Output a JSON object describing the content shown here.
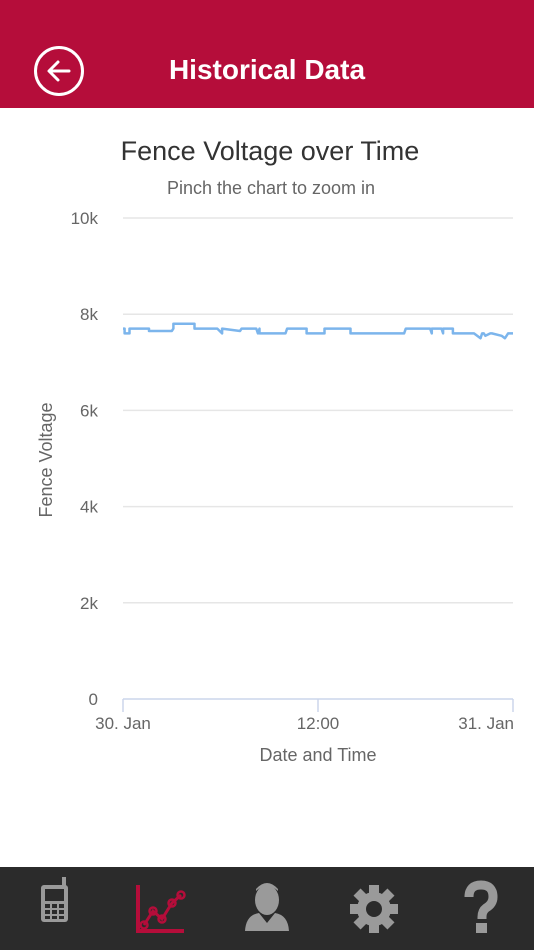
{
  "header": {
    "title": "Historical Data",
    "back_icon": "back-arrow-icon",
    "background_color": "#b50d3a"
  },
  "chart_data": {
    "type": "line",
    "title": "Fence Voltage over Time",
    "subtitle": "Pinch the chart to zoom in",
    "xlabel": "Date and Time",
    "ylabel": "Fence Voltage",
    "ylim": [
      0,
      10000
    ],
    "xlim": [
      "30. Jan 00:00",
      "31. Jan 00:00"
    ],
    "y_ticks": [
      "0",
      "2k",
      "4k",
      "6k",
      "8k",
      "10k"
    ],
    "x_ticks": [
      "30. Jan",
      "12:00",
      "31. Jan"
    ],
    "grid": true,
    "series": [
      {
        "color": "#7cb5ec",
        "x_hours": [
          0,
          0.1,
          0.1,
          0.4,
          0.4,
          1.5,
          1.6,
          1.6,
          3.0,
          3.1,
          3.1,
          4.3,
          4.4,
          4.4,
          5.8,
          6.1,
          6.1,
          7.2,
          7.3,
          8.2,
          8.3,
          8.4,
          8.4,
          10.0,
          10.1,
          10.1,
          11.2,
          11.3,
          11.3,
          12.4,
          12.4,
          14.0,
          14.0,
          15.3,
          15.3,
          17.3,
          17.4,
          17.4,
          18.9,
          19.0,
          19.0,
          19.6,
          19.7,
          19.7,
          20.3,
          20.3,
          21.5,
          21.6,
          22.0,
          22.1,
          22.2,
          22.3,
          22.6,
          22.7,
          23.3,
          23.5,
          23.7,
          24.0
        ],
        "y": [
          7700,
          7700,
          7600,
          7600,
          7700,
          7700,
          7700,
          7650,
          7650,
          7700,
          7800,
          7800,
          7800,
          7700,
          7700,
          7600,
          7700,
          7650,
          7700,
          7700,
          7600,
          7700,
          7600,
          7600,
          7700,
          7700,
          7700,
          7700,
          7600,
          7600,
          7700,
          7700,
          7600,
          7600,
          7600,
          7600,
          7700,
          7700,
          7700,
          7600,
          7700,
          7700,
          7600,
          7700,
          7700,
          7600,
          7600,
          7600,
          7500,
          7600,
          7600,
          7550,
          7600,
          7600,
          7550,
          7500,
          7600,
          7600
        ]
      }
    ]
  },
  "tabbar": {
    "background_color": "#2b2b2b",
    "active_color": "#b50d3a",
    "inactive_color": "#9a9a9a",
    "tabs": [
      {
        "icon": "mobile-phone-icon",
        "active": false
      },
      {
        "icon": "line-chart-icon",
        "active": true
      },
      {
        "icon": "user-icon",
        "active": false
      },
      {
        "icon": "gear-icon",
        "active": false
      },
      {
        "icon": "question-mark-icon",
        "active": false
      }
    ]
  }
}
